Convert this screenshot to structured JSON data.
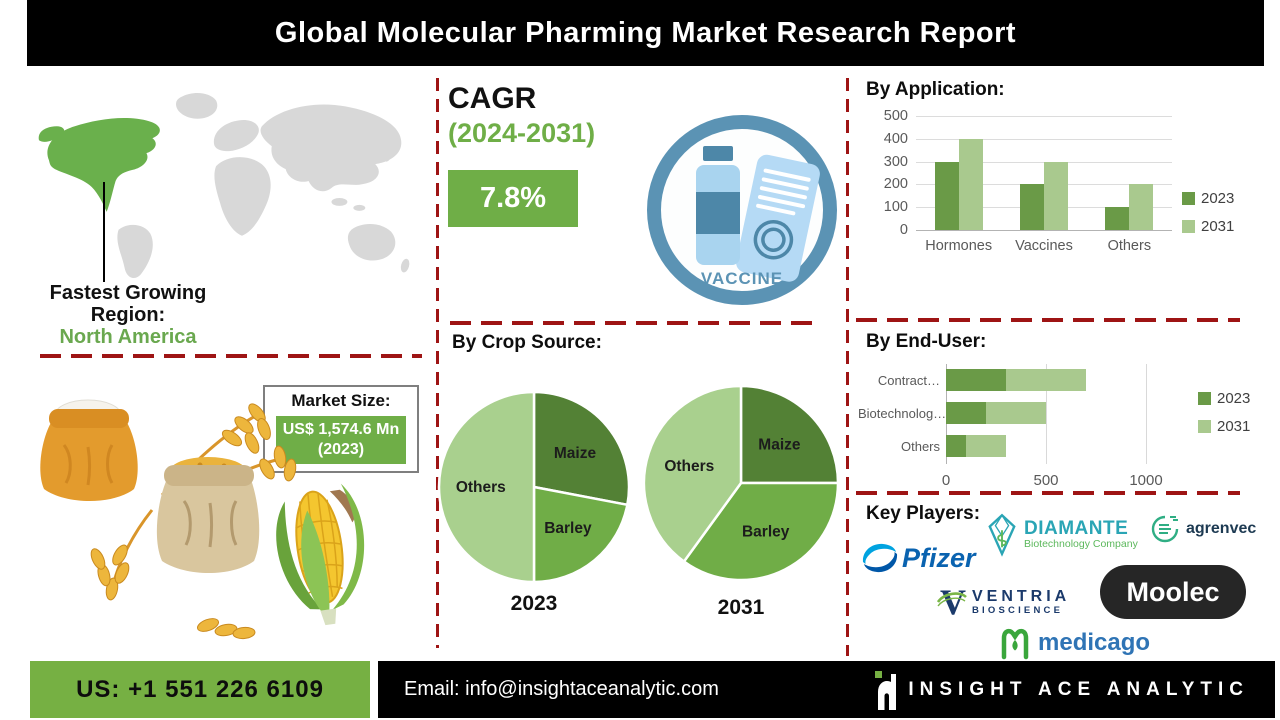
{
  "title": "Global Molecular Pharming Market Research Report",
  "colors": {
    "accent_green": "#6fae47",
    "footer_green": "#76b043",
    "dashed_red": "#9e1414",
    "icon_blue": "#5b93b4",
    "series_2023": "#6a9a47",
    "series_2031": "#a9c98e",
    "map_gray": "#d8d8d8",
    "map_highlight": "#6ab04c"
  },
  "map": {
    "region_label": "Fastest Growing Region:",
    "region_value": "North America"
  },
  "market_size": {
    "label": "Market Size:",
    "value": "US$ 1,574.6 Mn (2023)"
  },
  "cagr": {
    "label": "CAGR",
    "period": "(2024-2031)",
    "value": "7.8%"
  },
  "vaccine_badge": {
    "label": "VACCINE"
  },
  "chart_data": [
    {
      "id": "by_application",
      "type": "bar",
      "title": "By Application:",
      "categories": [
        "Hormones",
        "Vaccines",
        "Others"
      ],
      "series": [
        {
          "name": "2023",
          "color": "#6a9a47",
          "values": [
            300,
            200,
            100
          ]
        },
        {
          "name": "2031",
          "color": "#a9c98e",
          "values": [
            400,
            300,
            200
          ]
        }
      ],
      "ylim": [
        0,
        500
      ],
      "yticks": [
        0,
        100,
        200,
        300,
        400,
        500
      ],
      "grid": true,
      "legend_position": "right"
    },
    {
      "id": "by_crop_source",
      "type": "pie",
      "title": "By Crop Source:",
      "pies": [
        {
          "label": "2023",
          "slices": [
            {
              "name": "Maize",
              "value": 28,
              "color": "#538135"
            },
            {
              "name": "Barley",
              "value": 22,
              "color": "#70ad47"
            },
            {
              "name": "Others",
              "value": 50,
              "color": "#a9d08e"
            }
          ]
        },
        {
          "label": "2031",
          "slices": [
            {
              "name": "Maize",
              "value": 25,
              "color": "#538135"
            },
            {
              "name": "Barley",
              "value": 35,
              "color": "#70ad47"
            },
            {
              "name": "Others",
              "value": 40,
              "color": "#a9d08e"
            }
          ]
        }
      ]
    },
    {
      "id": "by_end_user",
      "type": "bar",
      "orientation": "horizontal",
      "stacked": true,
      "title": "By End-User:",
      "categories": [
        "Contract…",
        "Biotechnolog…",
        "Others"
      ],
      "series": [
        {
          "name": "2023",
          "color": "#6a9a47",
          "values": [
            300,
            200,
            100
          ]
        },
        {
          "name": "2031",
          "color": "#a9c98e",
          "values": [
            400,
            300,
            200
          ]
        }
      ],
      "xlim": [
        0,
        1200
      ],
      "xticks": [
        0,
        500,
        1000
      ],
      "grid": true,
      "legend_position": "right"
    }
  ],
  "key_players": {
    "label": "Key Players:",
    "logos": [
      {
        "name": "Pfizer"
      },
      {
        "name": "DIAMANTE",
        "subtitle": "Biotechnology Company"
      },
      {
        "name": "agrenvec"
      },
      {
        "name": "VENTRIA",
        "subtitle": "BIOSCIENCE"
      },
      {
        "name": "Moolec"
      },
      {
        "name": "medicago"
      }
    ]
  },
  "footer": {
    "phone": "US: +1 551 226 6109",
    "email_label": "Email:",
    "email": "info@insightaceanalytic.com",
    "brand": "INSIGHT ACE ANALYTIC"
  }
}
